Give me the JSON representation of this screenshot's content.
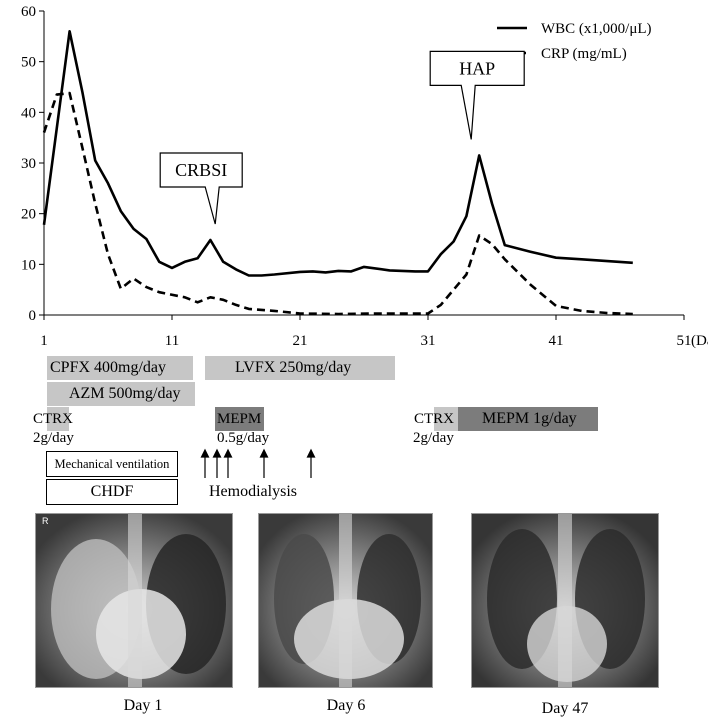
{
  "chart_data": {
    "type": "line",
    "x_ticks": [
      1,
      11,
      21,
      31,
      41,
      51
    ],
    "y_ticks": [
      0,
      10,
      20,
      30,
      40,
      50,
      60
    ],
    "xlim": [
      1,
      51
    ],
    "ylim": [
      0,
      60
    ],
    "x_unit": "(Day)",
    "series": [
      {
        "name": "WBC (x1,000/μL)",
        "style": "solid",
        "x": [
          1,
          3,
          4,
          5,
          6,
          7,
          8,
          9,
          10,
          11,
          12,
          13,
          14,
          15,
          16,
          17,
          18,
          19,
          21,
          22,
          23,
          24,
          25,
          26,
          28,
          30,
          31,
          32,
          33,
          34,
          35,
          36,
          37,
          39,
          41,
          43,
          47
        ],
        "y": [
          17.8,
          56.0,
          44.0,
          30.5,
          26.0,
          20.5,
          17.0,
          15.0,
          10.5,
          9.3,
          10.5,
          11.2,
          14.8,
          10.5,
          9.0,
          7.8,
          7.8,
          8.0,
          8.5,
          8.6,
          8.4,
          8.7,
          8.6,
          9.5,
          8.8,
          8.6,
          8.6,
          12.0,
          14.5,
          19.5,
          31.5,
          22.0,
          13.8,
          12.5,
          11.3,
          11.0,
          10.3
        ]
      },
      {
        "name": "CRP (mg/mL)",
        "style": "dashed",
        "x": [
          1,
          2,
          3,
          4,
          5,
          6,
          7,
          8,
          9,
          10,
          12,
          13,
          14,
          15,
          16,
          17,
          19,
          21,
          24,
          27,
          30,
          31,
          32,
          33,
          34,
          35,
          36,
          37,
          39,
          41,
          43,
          45,
          47
        ],
        "y": [
          36.0,
          43.5,
          43.8,
          33.0,
          22.0,
          12.0,
          5.2,
          7.2,
          5.5,
          4.5,
          3.5,
          2.5,
          3.5,
          3.0,
          2.0,
          1.2,
          0.8,
          0.3,
          0.2,
          0.3,
          0.3,
          0.3,
          2.0,
          5.0,
          8.0,
          15.7,
          14.0,
          11.0,
          6.0,
          1.8,
          0.8,
          0.4,
          0.2
        ]
      }
    ],
    "annotations": [
      {
        "text": "CRBSI",
        "x": 15,
        "y": 14.8
      },
      {
        "text": "HAP",
        "x": 35,
        "y": 31.5
      }
    ],
    "legend_position": "top-right"
  },
  "treatments": {
    "cpfx": "CPFX 400mg/day",
    "azm": "AZM 500mg/day",
    "lvfx": "LVFX 250mg/day",
    "ctrx1": "CTRX",
    "ctrx1_dose": "2g/day",
    "mepm1": "MEPM",
    "mepm1_dose": "0.5g/day",
    "ctrx2": "CTRX",
    "ctrx2_dose": "2g/day",
    "mepm2": "MEPM 1g/day",
    "ventilation": "Mechanical ventilation",
    "chdf": "CHDF",
    "hemodialysis": "Hemodialysis"
  },
  "images": [
    {
      "caption": "Day 1",
      "marker": "R"
    },
    {
      "caption": "Day 6"
    },
    {
      "caption": "Day 47"
    }
  ]
}
